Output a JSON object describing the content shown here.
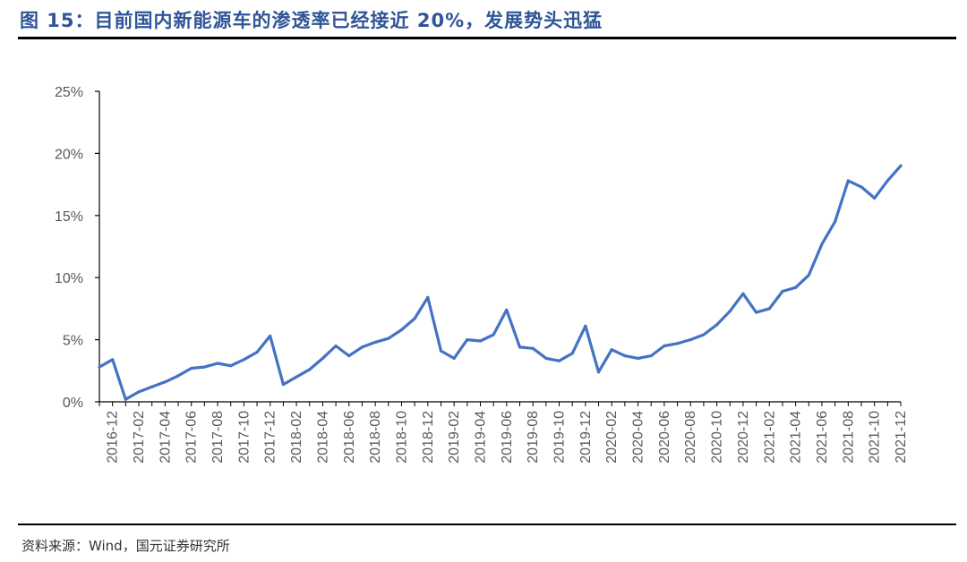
{
  "figure": {
    "title": "图 15：目前国内新能源车的渗透率已经接近 20%，发展势头迅猛",
    "source": "资料来源：Wind，国元证券研究所"
  },
  "chart_data": {
    "type": "line",
    "title": "",
    "xlabel": "",
    "ylabel": "",
    "ylim": [
      0,
      25
    ],
    "y_ticks": [
      0,
      5,
      10,
      15,
      20,
      25
    ],
    "y_tick_labels": [
      "0%",
      "5%",
      "10%",
      "15%",
      "20%",
      "25%"
    ],
    "x_tick_labels": [
      "2016-12",
      "2017-02",
      "2017-04",
      "2017-06",
      "2017-08",
      "2017-10",
      "2017-12",
      "2018-02",
      "2018-04",
      "2018-06",
      "2018-08",
      "2018-10",
      "2018-12",
      "2019-02",
      "2019-04",
      "2019-06",
      "2019-08",
      "2019-10",
      "2019-12",
      "2020-02",
      "2020-04",
      "2020-06",
      "2020-08",
      "2020-10",
      "2020-12",
      "2021-02",
      "2021-04",
      "2021-06",
      "2021-08",
      "2021-10",
      "2021-12"
    ],
    "grid": false,
    "legend": "none",
    "line_color": "#4472C4",
    "x": [
      "2016-11",
      "2016-12",
      "2017-01",
      "2017-02",
      "2017-03",
      "2017-04",
      "2017-05",
      "2017-06",
      "2017-07",
      "2017-08",
      "2017-09",
      "2017-10",
      "2017-11",
      "2017-12",
      "2018-01",
      "2018-02",
      "2018-03",
      "2018-04",
      "2018-05",
      "2018-06",
      "2018-07",
      "2018-08",
      "2018-09",
      "2018-10",
      "2018-11",
      "2018-12",
      "2019-01",
      "2019-02",
      "2019-03",
      "2019-04",
      "2019-05",
      "2019-06",
      "2019-07",
      "2019-08",
      "2019-09",
      "2019-10",
      "2019-11",
      "2019-12",
      "2020-01",
      "2020-02",
      "2020-03",
      "2020-04",
      "2020-05",
      "2020-06",
      "2020-07",
      "2020-08",
      "2020-09",
      "2020-10",
      "2020-11",
      "2020-12",
      "2021-01",
      "2021-02",
      "2021-03",
      "2021-04",
      "2021-05",
      "2021-06",
      "2021-07",
      "2021-08",
      "2021-09",
      "2021-10",
      "2021-11",
      "2021-12"
    ],
    "series": [
      {
        "values": [
          2.8,
          3.4,
          0.2,
          0.8,
          1.2,
          1.6,
          2.1,
          2.7,
          2.8,
          3.1,
          2.9,
          3.4,
          4.0,
          5.3,
          1.4,
          2.0,
          2.6,
          3.5,
          4.5,
          3.7,
          4.4,
          4.8,
          5.1,
          5.8,
          6.7,
          8.4,
          4.1,
          3.5,
          5.0,
          4.9,
          5.4,
          7.4,
          4.4,
          4.3,
          3.5,
          3.3,
          3.9,
          6.1,
          2.4,
          4.2,
          3.7,
          3.5,
          3.7,
          4.5,
          4.7,
          5.0,
          5.4,
          6.2,
          7.3,
          8.7,
          7.2,
          7.5,
          8.9,
          9.2,
          10.2,
          12.7,
          14.5,
          17.8,
          17.3,
          16.4,
          17.8,
          19.0
        ]
      }
    ]
  }
}
